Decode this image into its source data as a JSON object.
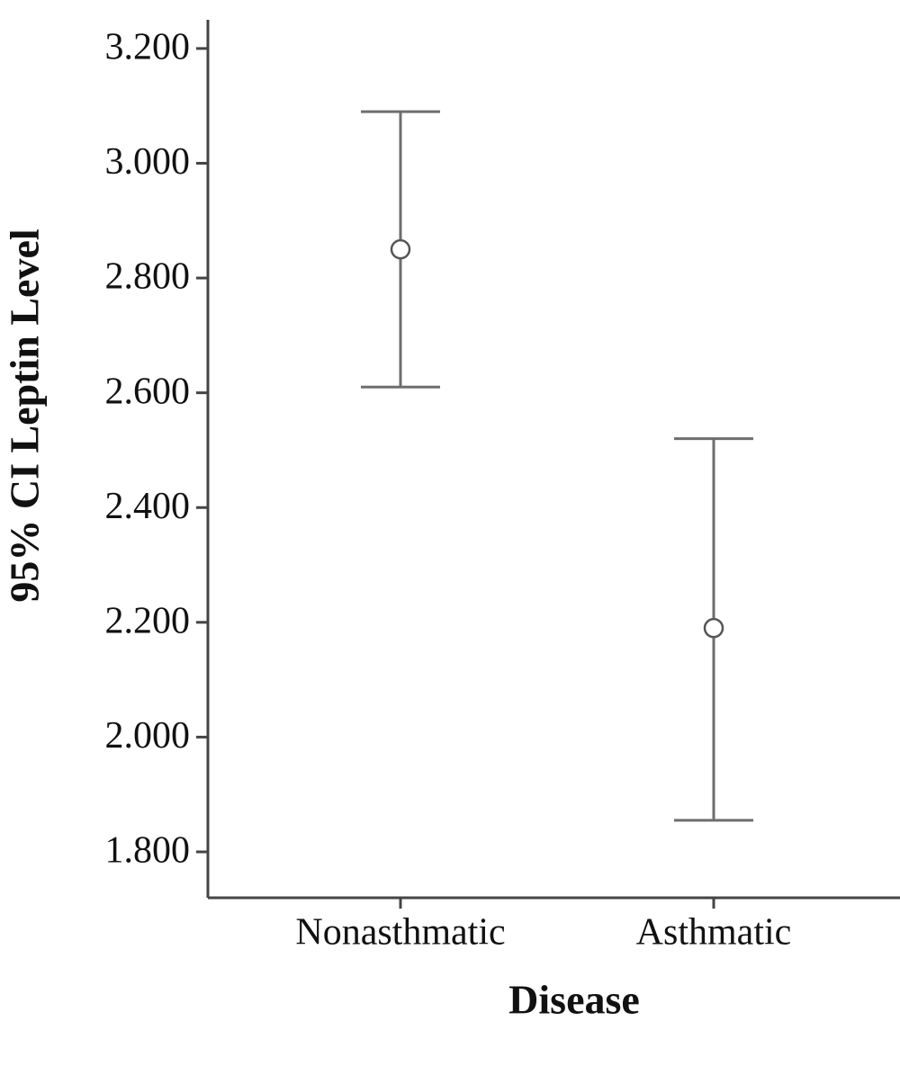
{
  "chart_data": {
    "type": "errorbar",
    "y_label": "95% CI Leptin Level",
    "x_label": "Disease",
    "categories": [
      "Nonasthmatic",
      "Asthmatic"
    ],
    "values": [
      2.85,
      2.19
    ],
    "lower": [
      2.61,
      1.855
    ],
    "upper": [
      3.09,
      2.52
    ],
    "color": "#6e6e6e",
    "ylim": [
      1.72,
      3.25
    ],
    "yticks": [
      {
        "value": 1.8,
        "label": "1.800"
      },
      {
        "value": 2.0,
        "label": "2.000"
      },
      {
        "value": 2.2,
        "label": "2.200"
      },
      {
        "value": 2.4,
        "label": "2.400"
      },
      {
        "value": 2.6,
        "label": "2.600"
      },
      {
        "value": 2.8,
        "label": "2.800"
      },
      {
        "value": 3.0,
        "label": "3.000"
      },
      {
        "value": 3.2,
        "label": "3.200"
      }
    ],
    "grid": false
  }
}
